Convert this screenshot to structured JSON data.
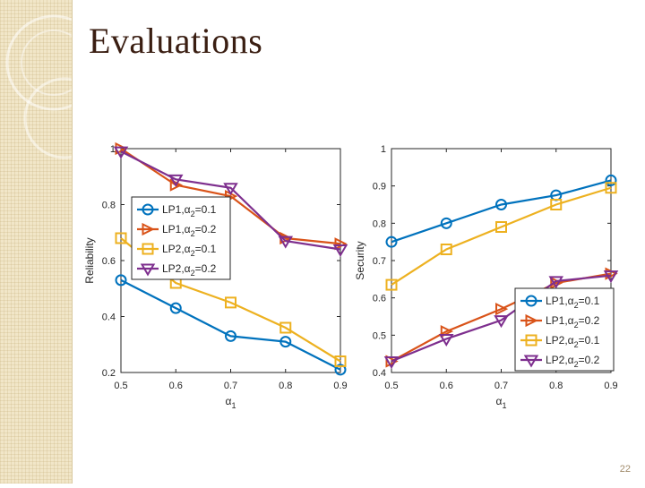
{
  "slide": {
    "title": "Evaluations",
    "page_number": "22"
  },
  "colors": {
    "title": "#3a1e12",
    "side_strip": "#f1e6c8"
  },
  "chart_data": [
    {
      "type": "line",
      "title": "",
      "xlabel": "α1",
      "ylabel": "Reliability",
      "x": [
        0.5,
        0.6,
        0.7,
        0.8,
        0.9
      ],
      "xlim": [
        0.5,
        0.9
      ],
      "ylim": [
        0.2,
        1.0
      ],
      "xticks": [
        "0.5",
        "0.6",
        "0.7",
        "0.8",
        "0.9"
      ],
      "yticks": [
        "0.2",
        "0.4",
        "0.6",
        "0.8",
        "1"
      ],
      "grid": false,
      "legend_position": "middle-left",
      "series": [
        {
          "name": "LP1,α2=0.1",
          "color": "#0072bd",
          "marker": "circle",
          "values": [
            0.53,
            0.43,
            0.33,
            0.31,
            0.21
          ]
        },
        {
          "name": "LP1,α2=0.2",
          "color": "#d95319",
          "marker": "triangle-right",
          "values": [
            1.0,
            0.87,
            0.83,
            0.68,
            0.66
          ]
        },
        {
          "name": "LP2,α2=0.1",
          "color": "#edb120",
          "marker": "square",
          "values": [
            0.68,
            0.52,
            0.45,
            0.36,
            0.24
          ]
        },
        {
          "name": "LP2,α2=0.2",
          "color": "#7e2f8e",
          "marker": "triangle-down",
          "values": [
            0.99,
            0.89,
            0.86,
            0.67,
            0.64
          ]
        }
      ]
    },
    {
      "type": "line",
      "title": "",
      "xlabel": "α1",
      "ylabel": "Security",
      "x": [
        0.5,
        0.6,
        0.7,
        0.8,
        0.9
      ],
      "xlim": [
        0.5,
        0.9
      ],
      "ylim": [
        0.4,
        1.0
      ],
      "xticks": [
        "0.5",
        "0.6",
        "0.7",
        "0.8",
        "0.9"
      ],
      "yticks": [
        "0.4",
        "0.5",
        "0.6",
        "0.7",
        "0.8",
        "0.9",
        "1"
      ],
      "grid": false,
      "legend_position": "bottom-right",
      "series": [
        {
          "name": "LP1,α2=0.1",
          "color": "#0072bd",
          "marker": "circle",
          "values": [
            0.75,
            0.8,
            0.85,
            0.875,
            0.915
          ]
        },
        {
          "name": "LP1,α2=0.2",
          "color": "#d95319",
          "marker": "triangle-right",
          "values": [
            0.43,
            0.51,
            0.57,
            0.64,
            0.665
          ]
        },
        {
          "name": "LP2,α2=0.1",
          "color": "#edb120",
          "marker": "square",
          "values": [
            0.635,
            0.73,
            0.79,
            0.85,
            0.895
          ]
        },
        {
          "name": "LP2,α2=0.2",
          "color": "#7e2f8e",
          "marker": "triangle-down",
          "values": [
            0.43,
            0.49,
            0.54,
            0.645,
            0.66
          ]
        }
      ]
    }
  ]
}
